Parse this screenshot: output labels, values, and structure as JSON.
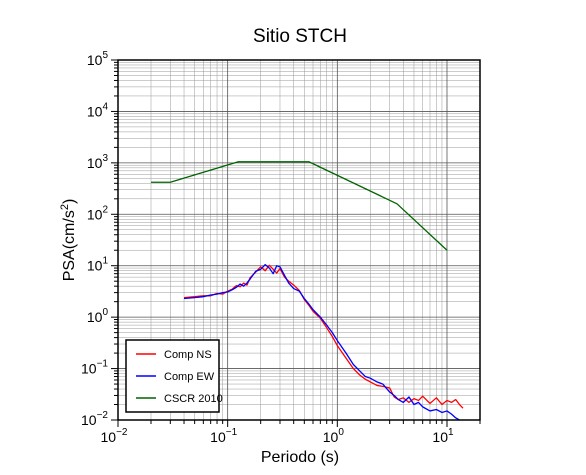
{
  "chart_data": {
    "type": "line",
    "title": "Sitio STCH",
    "xlabel": "Periodo (s)",
    "ylabel_main": "PSA(cm/s",
    "ylabel_sup": "2",
    "ylabel_close": ")",
    "x_scale": "log",
    "y_scale": "log",
    "xlim": [
      0.01,
      20
    ],
    "ylim": [
      0.01,
      100000
    ],
    "grid": true,
    "legend_position": "bottom-left",
    "x_ticks": [
      {
        "value": 0.01,
        "base": "10",
        "exp": "−2"
      },
      {
        "value": 0.1,
        "base": "10",
        "exp": "−1"
      },
      {
        "value": 1,
        "base": "10",
        "exp": "0"
      },
      {
        "value": 10,
        "base": "10",
        "exp": "1"
      }
    ],
    "y_ticks": [
      {
        "value": 0.01,
        "base": "10",
        "exp": "−2"
      },
      {
        "value": 0.1,
        "base": "10",
        "exp": "−1"
      },
      {
        "value": 1,
        "base": "10",
        "exp": "0"
      },
      {
        "value": 10,
        "base": "10",
        "exp": "1"
      },
      {
        "value": 100,
        "base": "10",
        "exp": "2"
      },
      {
        "value": 1000,
        "base": "10",
        "exp": "3"
      },
      {
        "value": 10000,
        "base": "10",
        "exp": "4"
      },
      {
        "value": 100000,
        "base": "10",
        "exp": "5"
      }
    ],
    "series": [
      {
        "name": "Comp NS",
        "color": "#ff0000",
        "x": [
          0.04,
          0.05,
          0.06,
          0.07,
          0.08,
          0.09,
          0.1,
          0.11,
          0.12,
          0.13,
          0.14,
          0.15,
          0.16,
          0.18,
          0.2,
          0.22,
          0.24,
          0.26,
          0.28,
          0.3,
          0.33,
          0.36,
          0.4,
          0.45,
          0.5,
          0.55,
          0.6,
          0.7,
          0.8,
          0.9,
          1.0,
          1.2,
          1.4,
          1.6,
          1.8,
          2.0,
          2.3,
          2.6,
          3.0,
          3.3,
          3.6,
          4.0,
          4.5,
          5.0,
          5.5,
          6.0,
          7.0,
          8.0,
          9.0,
          10,
          11,
          12,
          13,
          14
        ],
        "y": [
          2.4,
          2.5,
          2.6,
          2.6,
          2.9,
          2.8,
          3.2,
          3.5,
          4.1,
          3.9,
          4.6,
          4.2,
          5.8,
          7.5,
          9.5,
          8.0,
          10.2,
          8.5,
          7.2,
          8.8,
          6.0,
          5.0,
          4.2,
          3.3,
          2.2,
          1.7,
          1.3,
          0.95,
          0.62,
          0.42,
          0.28,
          0.16,
          0.1,
          0.075,
          0.062,
          0.055,
          0.047,
          0.045,
          0.042,
          0.028,
          0.025,
          0.027,
          0.022,
          0.026,
          0.024,
          0.029,
          0.021,
          0.027,
          0.02,
          0.024,
          0.022,
          0.025,
          0.02,
          0.017
        ]
      },
      {
        "name": "Comp EW",
        "color": "#0000ff",
        "x": [
          0.04,
          0.05,
          0.06,
          0.07,
          0.08,
          0.09,
          0.1,
          0.11,
          0.12,
          0.13,
          0.14,
          0.15,
          0.16,
          0.18,
          0.2,
          0.22,
          0.24,
          0.26,
          0.28,
          0.3,
          0.33,
          0.36,
          0.4,
          0.45,
          0.5,
          0.55,
          0.6,
          0.7,
          0.8,
          0.9,
          1.0,
          1.2,
          1.4,
          1.6,
          1.8,
          2.0,
          2.3,
          2.6,
          3.0,
          3.3,
          3.6,
          4.0,
          4.5,
          5.0,
          5.5,
          6.0,
          7.0,
          8.0,
          9.0,
          10,
          11,
          12,
          13
        ],
        "y": [
          2.3,
          2.4,
          2.5,
          2.7,
          2.8,
          3.0,
          3.1,
          3.4,
          3.8,
          4.4,
          4.0,
          4.6,
          5.5,
          7.8,
          8.5,
          10.5,
          9.0,
          7.0,
          10.0,
          9.5,
          6.5,
          4.6,
          3.6,
          3.2,
          2.3,
          1.8,
          1.4,
          1.0,
          0.7,
          0.5,
          0.35,
          0.2,
          0.12,
          0.09,
          0.07,
          0.065,
          0.055,
          0.05,
          0.035,
          0.03,
          0.025,
          0.022,
          0.028,
          0.02,
          0.022,
          0.018,
          0.015,
          0.016,
          0.014,
          0.015,
          0.013,
          0.011,
          0.01
        ]
      },
      {
        "name": "CSCR 2010",
        "color": "#006400",
        "x": [
          0.02,
          0.03,
          0.125,
          0.55,
          3.5,
          10
        ],
        "y": [
          420,
          420,
          1050,
          1050,
          160,
          20
        ]
      }
    ]
  }
}
